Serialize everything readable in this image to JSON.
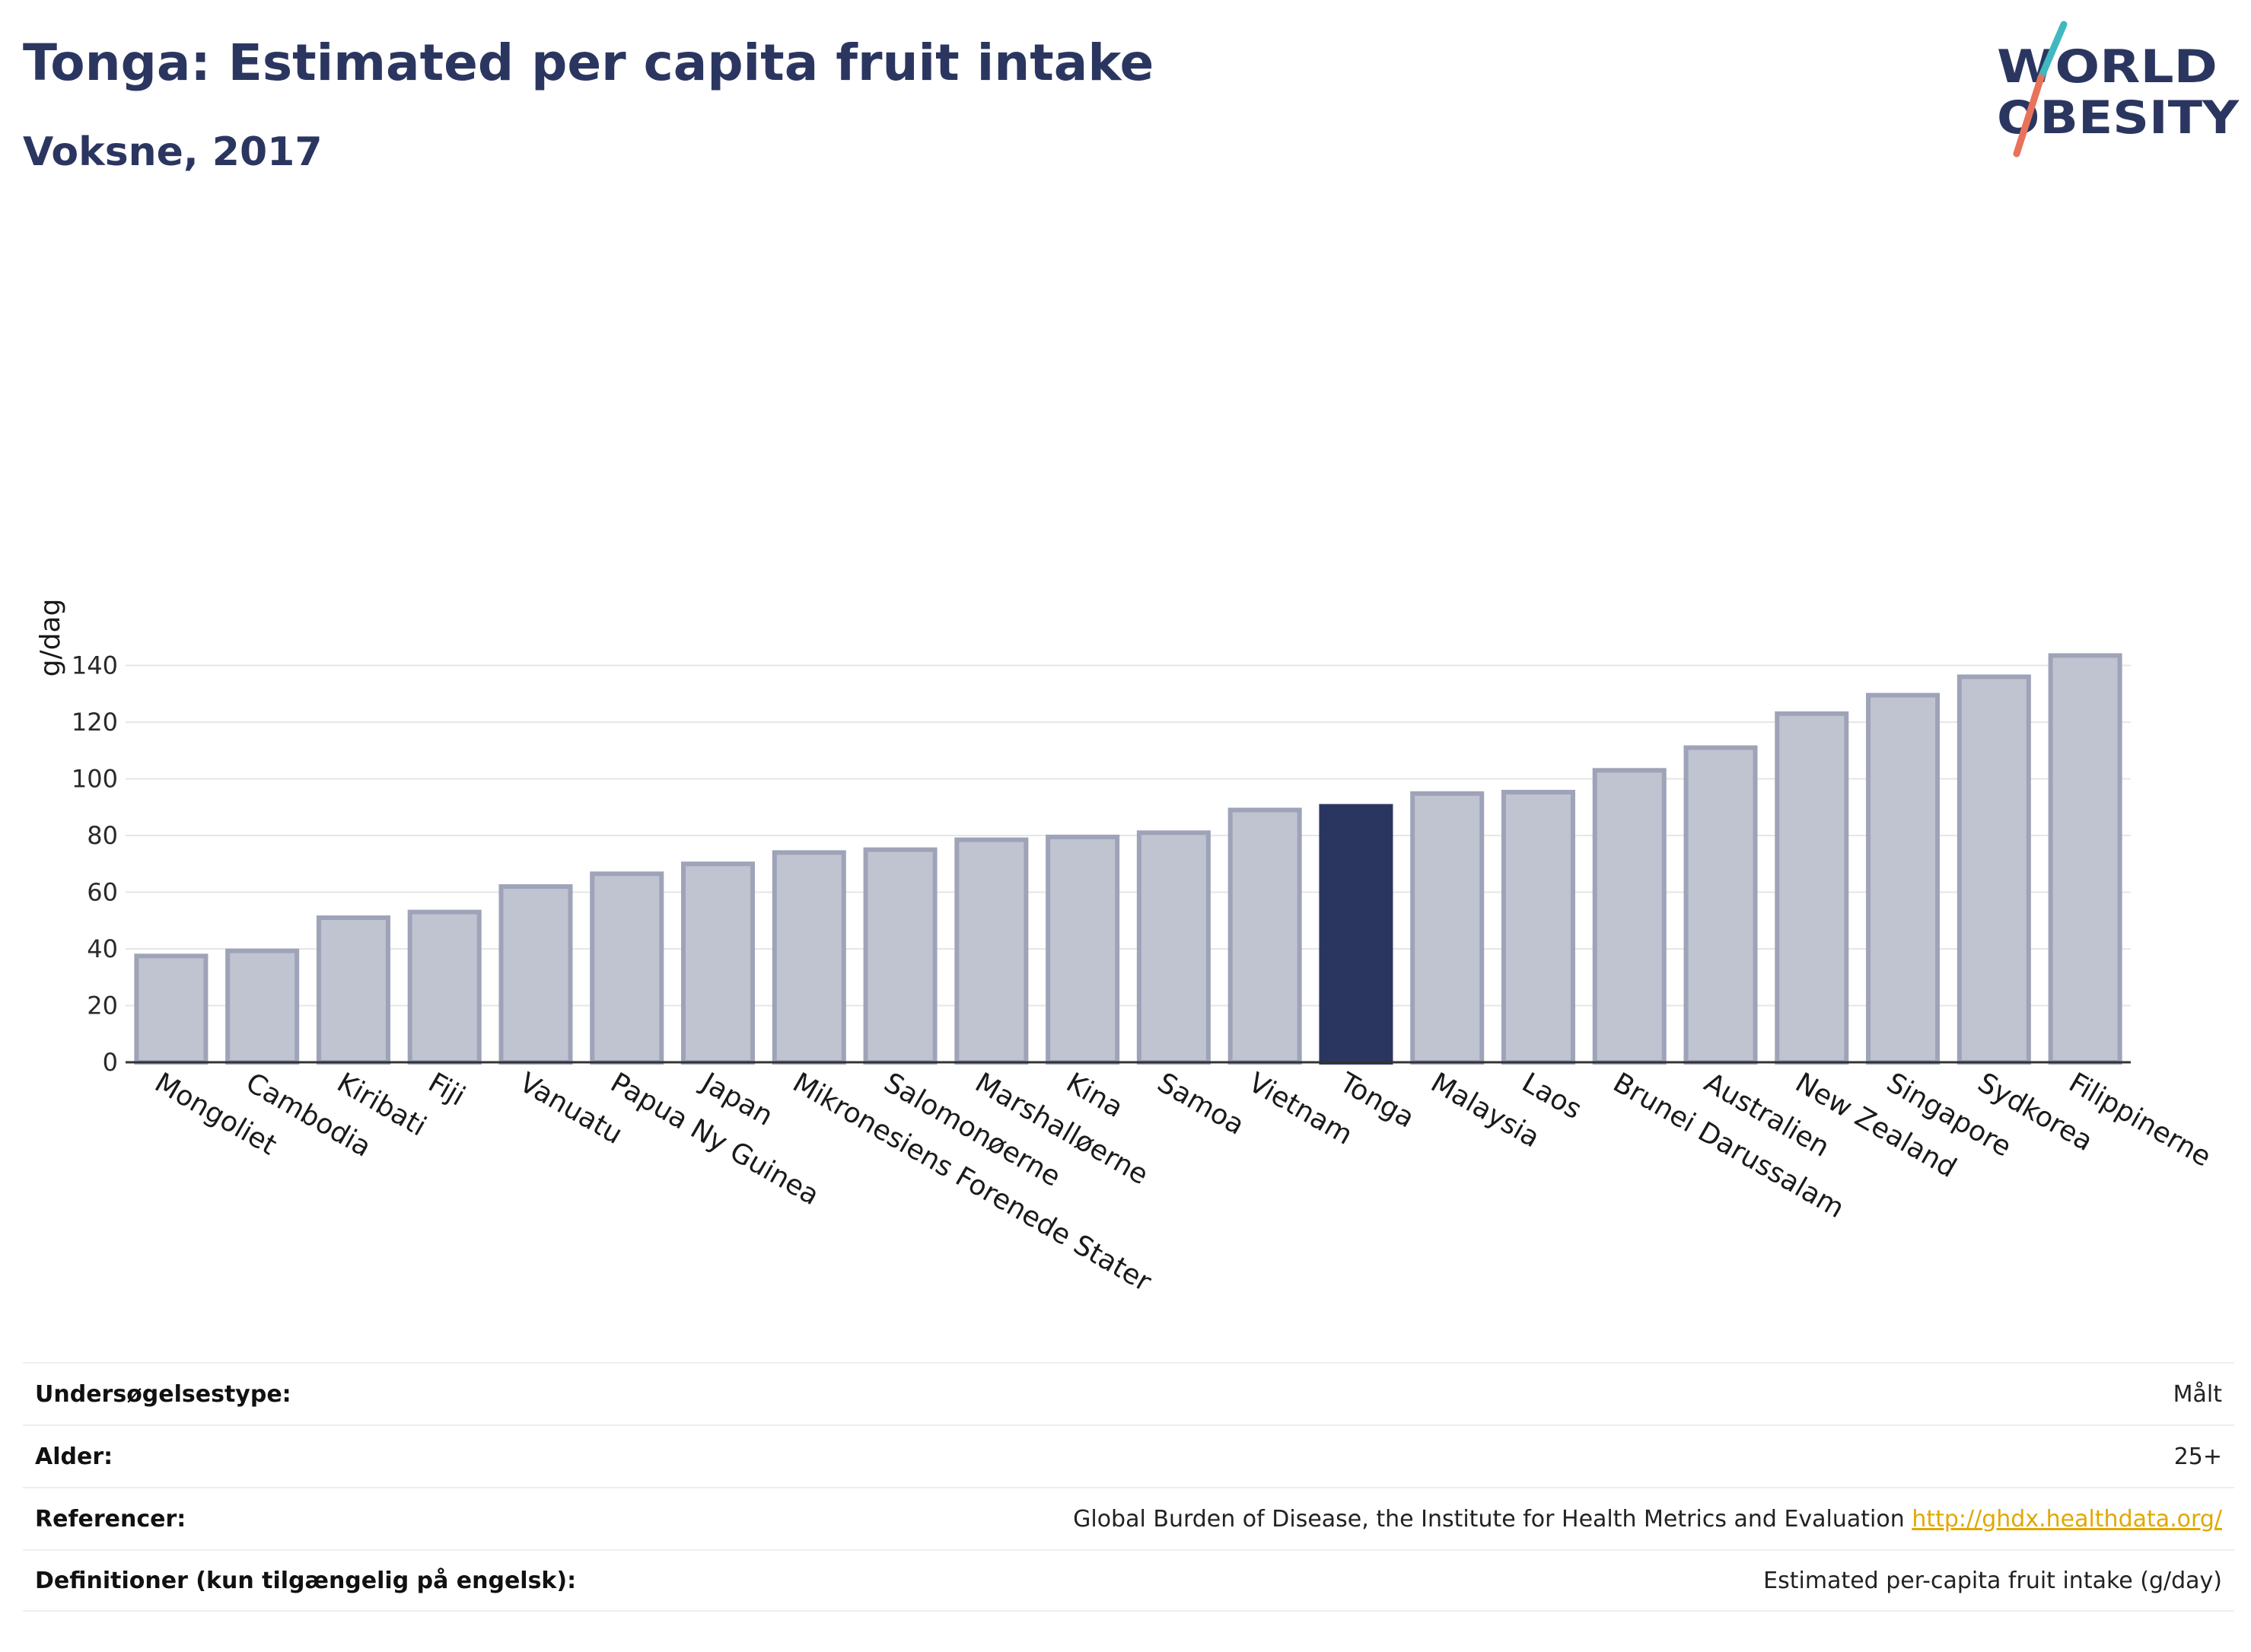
{
  "header": {
    "title": "Tonga: Estimated per capita fruit intake",
    "subtitle": "Voksne, 2017"
  },
  "logo": {
    "line1": "WORLD",
    "line2": "OBESITY",
    "colors": {
      "text": "#2b3660",
      "slash_top": "#3fb8c0",
      "slash_bottom": "#e8735a"
    }
  },
  "colors": {
    "bar": "#c0c3d0",
    "bar_stroke": "#9ea3b8",
    "highlight": "#2b3660",
    "grid": "#e6e6e6"
  },
  "chart_data": {
    "type": "bar",
    "title": "",
    "xlabel": "",
    "ylabel": "g/dag",
    "ylim": [
      0,
      150
    ],
    "yticks": [
      0,
      20,
      40,
      60,
      80,
      100,
      120,
      140
    ],
    "grid": true,
    "highlight": "Tonga",
    "categories": [
      "Mongoliet",
      "Cambodia",
      "Kiribati",
      "Fiji",
      "Vanuatu",
      "Papua Ny Guinea",
      "Japan",
      "Mikronesiens Forenede Stater",
      "Salomonøerne",
      "Marshalløerne",
      "Kina",
      "Samoa",
      "Vietnam",
      "Tonga",
      "Malaysia",
      "Laos",
      "Brunei Darussalam",
      "Australien",
      "New Zealand",
      "Singapore",
      "Sydkorea",
      "Filippinerne"
    ],
    "values": [
      37.5,
      39.3,
      51.0,
      53.0,
      62.0,
      66.5,
      70.0,
      74.0,
      75.0,
      78.5,
      79.5,
      81.0,
      89.0,
      90.3,
      94.8,
      95.3,
      103.0,
      111.0,
      123.0,
      129.5,
      136.0,
      143.5
    ]
  },
  "info": {
    "rows": [
      {
        "label": "Undersøgelsestype:",
        "value": "Målt"
      },
      {
        "label": "Alder:",
        "value": "25+"
      },
      {
        "label": "Referencer:",
        "value": "Global Burden of Disease, the Institute for Health Metrics and Evaluation",
        "link": "http://ghdx.healthdata.org/"
      },
      {
        "label": "Definitioner (kun tilgængelig på engelsk):",
        "value": "Estimated per-capita fruit intake (g/day)"
      }
    ]
  }
}
